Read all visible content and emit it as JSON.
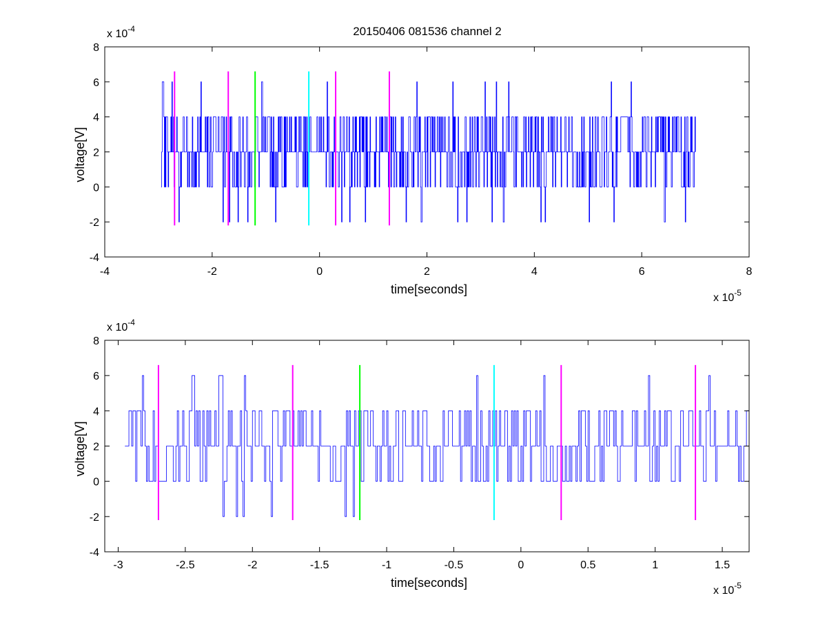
{
  "title": "20150406 081536 channel 2",
  "colors": {
    "trace": "#0000ff",
    "magenta": "#ff00ff",
    "green": "#00ff00",
    "cyan": "#00ffff"
  },
  "chart_data": [
    {
      "type": "line",
      "xlabel": "time[seconds]",
      "ylabel": "voltage[V]",
      "xlim": [
        -4e-05,
        8e-05
      ],
      "ylim": [
        -0.0004,
        0.0008
      ],
      "x_multiplier": "x 10",
      "x_exponent": "-5",
      "y_multiplier": "x 10",
      "y_exponent": "-4",
      "x_ticks": [
        -4,
        -2,
        0,
        2,
        4,
        6,
        8
      ],
      "x_tick_labels": [
        "-4",
        "-2",
        "0",
        "2",
        "4",
        "6",
        "8"
      ],
      "y_ticks": [
        -4,
        -2,
        0,
        2,
        4,
        6,
        8
      ],
      "y_tick_labels": [
        "-4",
        "-2",
        "0",
        "2",
        "4",
        "6",
        "8"
      ],
      "grid": false,
      "series": [
        {
          "kind": "quantized-noise",
          "x_start": -2.95e-05,
          "x_end": 7e-05,
          "step": 1e-07,
          "levels": [
            -0.0002,
            0,
            0.0002,
            0.0004,
            0.0006
          ],
          "baseline": 0.0002
        }
      ],
      "markers": [
        {
          "x": -2.7e-05,
          "color": "magenta",
          "y_range": [
            -0.00022,
            0.00066
          ]
        },
        {
          "x": -1.7e-05,
          "color": "magenta",
          "y_range": [
            -0.00022,
            0.00066
          ]
        },
        {
          "x": -1.2e-05,
          "color": "green",
          "y_range": [
            -0.00022,
            0.00066
          ]
        },
        {
          "x": -2e-06,
          "color": "cyan",
          "y_range": [
            -0.00022,
            0.00066
          ]
        },
        {
          "x": 3e-06,
          "color": "magenta",
          "y_range": [
            -0.00022,
            0.00066
          ]
        },
        {
          "x": 1.3e-05,
          "color": "magenta",
          "y_range": [
            -0.00022,
            0.00066
          ]
        }
      ]
    },
    {
      "type": "line",
      "xlabel": "time[seconds]",
      "ylabel": "voltage[V]",
      "xlim": [
        -3.1e-05,
        1.7e-05
      ],
      "ylim": [
        -0.0004,
        0.0008
      ],
      "x_multiplier": "x 10",
      "x_exponent": "-5",
      "y_multiplier": "x 10",
      "y_exponent": "-4",
      "x_ticks": [
        -3,
        -2.5,
        -2,
        -1.5,
        -1,
        -0.5,
        0,
        0.5,
        1,
        1.5
      ],
      "x_tick_labels": [
        "-3",
        "-2.5",
        "-2",
        "-1.5",
        "-1",
        "-0.5",
        "0",
        "0.5",
        "1",
        "1.5"
      ],
      "y_ticks": [
        -4,
        -2,
        0,
        2,
        4,
        6,
        8
      ],
      "y_tick_labels": [
        "-4",
        "-2",
        "0",
        "2",
        "4",
        "6",
        "8"
      ],
      "grid": false,
      "series": [
        {
          "kind": "quantized-noise",
          "x_start": -2.95e-05,
          "x_end": 1.7e-05,
          "step": 1e-07,
          "levels": [
            -0.0002,
            0,
            0.0002,
            0.0004,
            0.0006
          ],
          "baseline": 0.0002
        }
      ],
      "markers": [
        {
          "x": -2.7e-05,
          "color": "magenta",
          "y_range": [
            -0.00022,
            0.00066
          ]
        },
        {
          "x": -1.7e-05,
          "color": "magenta",
          "y_range": [
            -0.00022,
            0.00066
          ]
        },
        {
          "x": -1.2e-05,
          "color": "green",
          "y_range": [
            -0.00022,
            0.00066
          ]
        },
        {
          "x": -2e-06,
          "color": "cyan",
          "y_range": [
            -0.00022,
            0.00066
          ]
        },
        {
          "x": 3e-06,
          "color": "magenta",
          "y_range": [
            -0.00022,
            0.00066
          ]
        },
        {
          "x": 1.3e-05,
          "color": "magenta",
          "y_range": [
            -0.00022,
            0.00066
          ]
        }
      ]
    }
  ]
}
